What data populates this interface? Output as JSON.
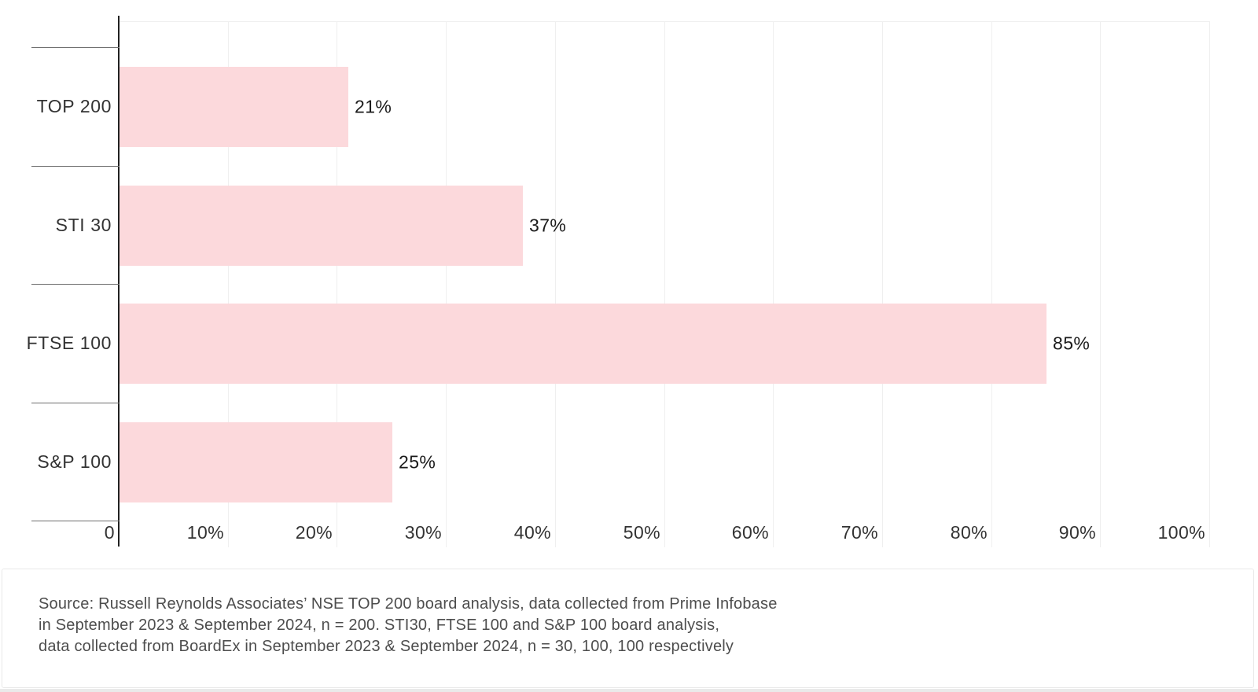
{
  "chart_data": {
    "type": "bar",
    "orientation": "horizontal",
    "title": "",
    "categories": [
      "TOP 200",
      "STI 30",
      "FTSE 100",
      "S&P 100"
    ],
    "values": [
      21,
      37,
      85,
      25
    ],
    "data_labels": [
      "21%",
      "37%",
      "85%",
      "25%"
    ],
    "xlabel": "",
    "ylabel": "",
    "xlim": [
      0,
      100
    ],
    "x_tick_values": [
      0,
      10,
      20,
      30,
      40,
      50,
      60,
      70,
      80,
      90,
      100
    ],
    "x_tick_labels": [
      "0",
      "10%",
      "20%",
      "30%",
      "40%",
      "50%",
      "60%",
      "70%",
      "80%",
      "90%",
      "100%"
    ],
    "grid": "vertical-only",
    "legend": "none",
    "bar_color": "#fcd9dc"
  },
  "colors": {
    "bar_fill": "#fcd9dc",
    "gridline": "#efefef",
    "axis_line": "#222222",
    "category_tick_line": "#6e6e6e",
    "axis_label_text": "#333333",
    "value_label_text": "#1a1a1a",
    "footer_text": "#4d4d4d",
    "footer_border": "#e9e9e9"
  },
  "footer": {
    "source_lines": [
      "Source: Russell Reynolds Associates’ NSE TOP 200 board analysis, data collected from Prime Infobase",
      "in September 2023 & September 2024, n = 200. STI30, FTSE 100 and S&P 100 board analysis,",
      "data collected from BoardEx in September 2023 & September 2024, n = 30, 100, 100 respectively"
    ]
  }
}
